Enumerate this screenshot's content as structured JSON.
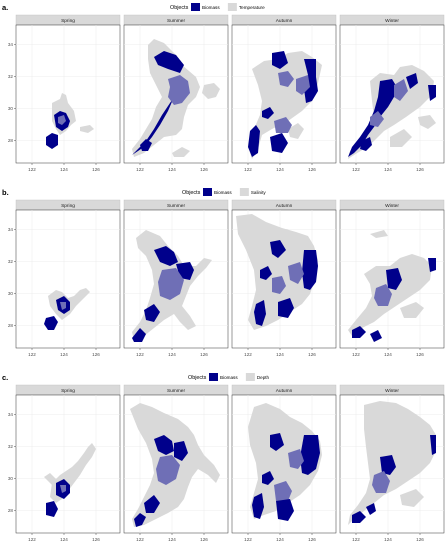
{
  "colors": {
    "object": "#00008b",
    "overlap": "#6f6fb6",
    "variable": "#d9d9d9",
    "strip": "#d9d9d9",
    "grid": "#ececec",
    "axis": "#4d4d4d"
  },
  "chart_data": {
    "type": "map-facets",
    "facets": [
      "Spring",
      "Summer",
      "Autumn",
      "Winter"
    ],
    "x_ticks": [
      122,
      124,
      126
    ],
    "y_ticks": [
      28,
      30,
      32,
      34
    ],
    "xlim": [
      121,
      127.5
    ],
    "ylim": [
      26.6,
      35.2
    ],
    "legend_placement": "top",
    "grid": true,
    "panels": [
      {
        "label": "a.",
        "legend_title": "Objects",
        "legend_items": [
          {
            "name": "Biomass",
            "color": "#00008b"
          },
          {
            "name": "Temperature",
            "color": "#d9d9d9"
          }
        ]
      },
      {
        "label": "b.",
        "legend_title": "Objects",
        "legend_items": [
          {
            "name": "Biomass",
            "color": "#00008b"
          },
          {
            "name": "Salinity",
            "color": "#d9d9d9"
          }
        ]
      },
      {
        "label": "c.",
        "legend_title": "Objects",
        "legend_items": [
          {
            "name": "Biomass",
            "color": "#00008b"
          },
          {
            "name": "Depth",
            "color": "#d9d9d9"
          }
        ]
      }
    ]
  }
}
